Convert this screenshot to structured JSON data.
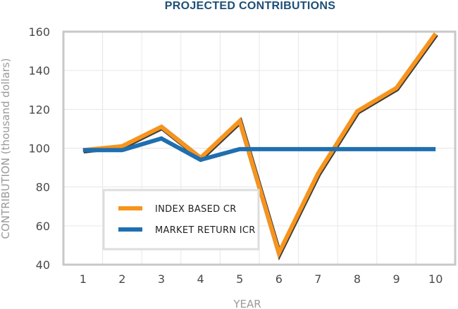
{
  "chart_data": {
    "type": "line",
    "title": "PROJECTED CONTRIBUTIONS",
    "xlabel": "YEAR",
    "ylabel": "CONTRIBUTION (thousand dollars)",
    "categories": [
      "1",
      "2",
      "3",
      "4",
      "5",
      "6",
      "7",
      "8",
      "9",
      "10"
    ],
    "ylim": [
      40,
      160
    ],
    "yticks": [
      40,
      60,
      80,
      100,
      120,
      140,
      160
    ],
    "grid": true,
    "legend_position": "bottom-left",
    "series": [
      {
        "name": "INDEX BASED CR",
        "color": "#f7941d",
        "points": [
          [
            0,
            99
          ],
          [
            1,
            101
          ],
          [
            2,
            111
          ],
          [
            3,
            95
          ],
          [
            4,
            114
          ],
          [
            5,
            46
          ],
          [
            6,
            87
          ],
          [
            7,
            119
          ],
          [
            8,
            131
          ],
          [
            9,
            159
          ]
        ]
      },
      {
        "name": "MARKET RETURN ICR",
        "color": "#1f6fb0",
        "points": [
          [
            0,
            99
          ],
          [
            1,
            99
          ],
          [
            2,
            105
          ],
          [
            3,
            94
          ],
          [
            4,
            99.5
          ],
          [
            5,
            99.5
          ],
          [
            6,
            99.5
          ],
          [
            7,
            99.5
          ],
          [
            8,
            99.5
          ],
          [
            9,
            99.5
          ]
        ]
      }
    ]
  }
}
